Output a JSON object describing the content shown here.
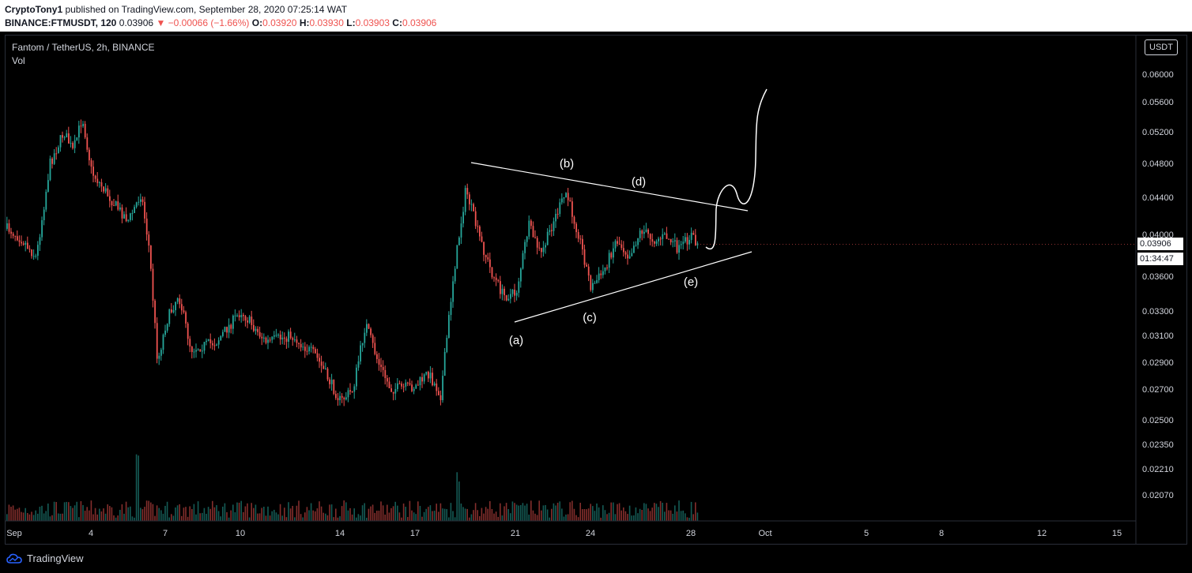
{
  "header": {
    "author": "CryptoTony1",
    "published_text": " published on TradingView.com, September 28, 2020 07:25:14 WAT",
    "symbol": "BINANCE:FTMUSDT, 120",
    "last": "0.03906",
    "change": "▼ −0.00066 (−1.66%)",
    "o_label": "O:",
    "o_val": "0.03920",
    "h_label": "H:",
    "h_val": "0.03930",
    "l_label": "L:",
    "l_val": "0.03903",
    "c_label": "C:",
    "c_val": "0.03906"
  },
  "legend": {
    "title": "Fantom / TetherUS, 2h, BINANCE",
    "vol": "Vol"
  },
  "currency_label": "USDT",
  "last_price_label": "0.03906",
  "countdown_label": "01:34:47",
  "footer": {
    "brand": "TradingView"
  },
  "colors": {
    "up": "#26a69a",
    "down": "#ef5350",
    "drawing": "#ffffff",
    "grid": "#2a2e39"
  },
  "chart_data": {
    "type": "candlestick",
    "title": "Fantom / TetherUS, 2h, BINANCE",
    "y_ticks": [
      "0.06000",
      "0.05600",
      "0.05200",
      "0.04800",
      "0.04400",
      "0.04000",
      "0.03600",
      "0.03300",
      "0.03100",
      "0.02900",
      "0.02700",
      "0.02500",
      "0.02350",
      "0.02210",
      "0.02070"
    ],
    "x_ticks": [
      "Sep",
      "4",
      "7",
      "10",
      "14",
      "17",
      "21",
      "24",
      "28",
      "Oct",
      "5",
      "8",
      "12",
      "15"
    ],
    "price_path": [
      {
        "x": "Sep 1",
        "y": 0.0406
      },
      {
        "x": "Sep 1",
        "y": 0.0395
      },
      {
        "x": "Sep 2",
        "y": 0.0378
      },
      {
        "x": "Sep 2",
        "y": 0.048
      },
      {
        "x": "Sep 3",
        "y": 0.052
      },
      {
        "x": "Sep 3",
        "y": 0.0495
      },
      {
        "x": "Sep 3",
        "y": 0.054
      },
      {
        "x": "Sep 4",
        "y": 0.047
      },
      {
        "x": "Sep 5",
        "y": 0.043
      },
      {
        "x": "Sep 5",
        "y": 0.0415
      },
      {
        "x": "Sep 6",
        "y": 0.0445
      },
      {
        "x": "Sep 6",
        "y": 0.0385
      },
      {
        "x": "Sep 6",
        "y": 0.029
      },
      {
        "x": "Sep 7",
        "y": 0.032
      },
      {
        "x": "Sep 7",
        "y": 0.0345
      },
      {
        "x": "Sep 8",
        "y": 0.03
      },
      {
        "x": "Sep 9",
        "y": 0.0305
      },
      {
        "x": "Sep 10",
        "y": 0.033
      },
      {
        "x": "Sep 10",
        "y": 0.0305
      },
      {
        "x": "Sep 12",
        "y": 0.031
      },
      {
        "x": "Sep 13",
        "y": 0.0295
      },
      {
        "x": "Sep 14",
        "y": 0.0262
      },
      {
        "x": "Sep 14",
        "y": 0.027
      },
      {
        "x": "Sep 15",
        "y": 0.032
      },
      {
        "x": "Sep 15",
        "y": 0.029
      },
      {
        "x": "Sep 16",
        "y": 0.027
      },
      {
        "x": "Sep 17",
        "y": 0.0272
      },
      {
        "x": "Sep 17",
        "y": 0.0282
      },
      {
        "x": "Sep 18",
        "y": 0.0266
      },
      {
        "x": "Sep 18",
        "y": 0.036
      },
      {
        "x": "Sep 19",
        "y": 0.045
      },
      {
        "x": "Sep 19",
        "y": 0.04
      },
      {
        "x": "Sep 20",
        "y": 0.0365
      },
      {
        "x": "Sep 20",
        "y": 0.0343
      },
      {
        "x": "Sep 21",
        "y": 0.0345
      },
      {
        "x": "Sep 21",
        "y": 0.041
      },
      {
        "x": "Sep 22",
        "y": 0.038
      },
      {
        "x": "Sep 22",
        "y": 0.0415
      },
      {
        "x": "Sep 23",
        "y": 0.0445
      },
      {
        "x": "Sep 23",
        "y": 0.04
      },
      {
        "x": "Sep 24",
        "y": 0.035
      },
      {
        "x": "Sep 24",
        "y": 0.0365
      },
      {
        "x": "Sep 25",
        "y": 0.0395
      },
      {
        "x": "Sep 25",
        "y": 0.038
      },
      {
        "x": "Sep 26",
        "y": 0.0405
      },
      {
        "x": "Sep 26",
        "y": 0.0395
      },
      {
        "x": "Sep 27",
        "y": 0.0398
      },
      {
        "x": "Sep 27",
        "y": 0.0385
      },
      {
        "x": "Sep 28",
        "y": 0.04
      },
      {
        "x": "Sep 28",
        "y": 0.0391
      }
    ],
    "annotations": [
      "(a)",
      "(b)",
      "(c)",
      "(d)",
      "(e)"
    ],
    "last_price": 0.03906,
    "legend": [
      "Vol"
    ]
  }
}
